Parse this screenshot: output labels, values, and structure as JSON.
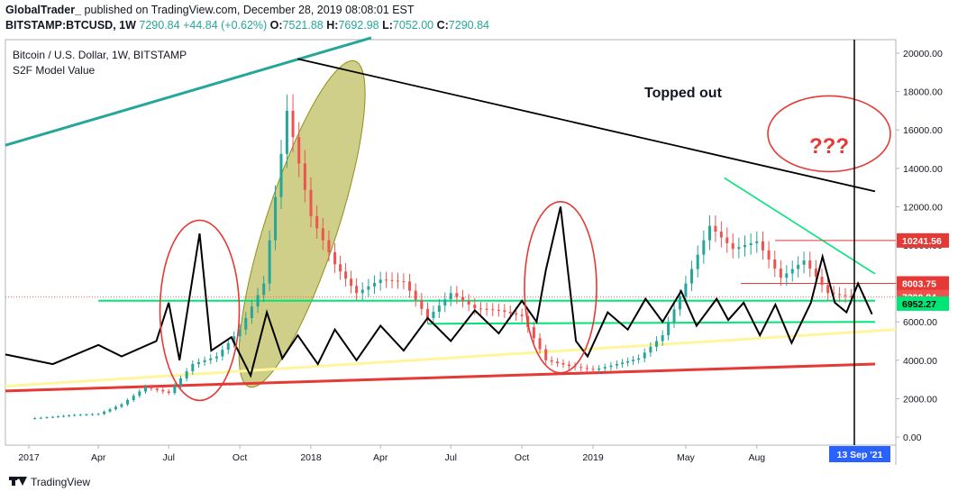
{
  "header": {
    "author": "GlobalTrader_",
    "published": "published on TradingView.com, December 28, 2019 08:08:01 EST",
    "symbol": "BITSTAMP:BTCUSD, 1W",
    "last": "7290.84",
    "change": "+44.84 (+0.62%)",
    "o_label": "O:",
    "o": "7521.88",
    "h_label": "H:",
    "h": "7692.98",
    "l_label": "L:",
    "l": "7052.00",
    "c_label": "C:",
    "c": "7290.84"
  },
  "legend": {
    "line1": "Bitcoin / U.S. Dollar, 1W, BITSTAMP",
    "line2": "S2F Model Value"
  },
  "annotations": {
    "topped_out": "Topped out",
    "question": "???"
  },
  "footer": {
    "brand": "TradingView"
  },
  "colors": {
    "up": "#26a69a",
    "down": "#ef5350",
    "s2f": "#000000",
    "upper_trend": "#26a69a",
    "lower_trend": "#e53935",
    "support": "#00e676",
    "accent": "#2962ff"
  },
  "chart_data": {
    "type": "candlestick",
    "title": "Bitcoin / U.S. Dollar, 1W, BITSTAMP",
    "y_axis": {
      "min": 0,
      "max": 21000,
      "ticks": [
        0,
        2000,
        4000,
        6000,
        8000,
        10000,
        12000,
        14000,
        16000,
        18000,
        20000
      ],
      "tick_labels": [
        "0.00",
        "2000.00",
        "4000.00",
        "6000.00",
        "8000.00",
        "10000.00",
        "12000.00",
        "14000.00",
        "16000.00",
        "18000.00",
        "20000.00"
      ]
    },
    "x_axis": {
      "start": "2016-12-01",
      "end": "2021-10-01",
      "ticks": [
        {
          "date": "2017-01-01",
          "label": "2017"
        },
        {
          "date": "2017-04-01",
          "label": "Apr"
        },
        {
          "date": "2017-07-01",
          "label": "Jul"
        },
        {
          "date": "2017-10-01",
          "label": "Oct"
        },
        {
          "date": "2018-01-01",
          "label": "2018"
        },
        {
          "date": "2018-04-01",
          "label": "Apr"
        },
        {
          "date": "2018-07-01",
          "label": "Jul"
        },
        {
          "date": "2018-10-01",
          "label": "Oct"
        },
        {
          "date": "2019-01-01",
          "label": "2019"
        },
        {
          "date": "2019-05-01",
          "label": "May"
        },
        {
          "date": "2019-08-01",
          "label": "Aug"
        }
      ],
      "cursor_label": "13 Sep '21"
    },
    "price_labels": [
      {
        "value": 10241.56,
        "label": "10241.56",
        "color": "#e53935"
      },
      {
        "value": 8003.75,
        "label": "8003.75",
        "color": "#e53935"
      },
      {
        "value": 7290.84,
        "label": "7290.84",
        "color": "#ef5350"
      },
      {
        "value": 6952.27,
        "label": "6952.27",
        "color": "#00e676"
      }
    ],
    "price_close_series": [
      {
        "d": "2017-01-01",
        "v": 960
      },
      {
        "d": "2017-02-01",
        "v": 1050
      },
      {
        "d": "2017-03-01",
        "v": 1150
      },
      {
        "d": "2017-04-01",
        "v": 1200
      },
      {
        "d": "2017-05-01",
        "v": 1700
      },
      {
        "d": "2017-06-01",
        "v": 2600
      },
      {
        "d": "2017-07-01",
        "v": 2300
      },
      {
        "d": "2017-08-01",
        "v": 3800
      },
      {
        "d": "2017-09-01",
        "v": 4200
      },
      {
        "d": "2017-10-01",
        "v": 5600
      },
      {
        "d": "2017-11-01",
        "v": 8000
      },
      {
        "d": "2017-12-01",
        "v": 17000
      },
      {
        "d": "2018-01-01",
        "v": 11500
      },
      {
        "d": "2018-02-01",
        "v": 9000
      },
      {
        "d": "2018-03-01",
        "v": 7500
      },
      {
        "d": "2018-04-01",
        "v": 8200
      },
      {
        "d": "2018-05-01",
        "v": 8100
      },
      {
        "d": "2018-06-01",
        "v": 6200
      },
      {
        "d": "2018-07-01",
        "v": 7500
      },
      {
        "d": "2018-08-01",
        "v": 6700
      },
      {
        "d": "2018-09-01",
        "v": 6600
      },
      {
        "d": "2018-10-01",
        "v": 6300
      },
      {
        "d": "2018-11-01",
        "v": 4000
      },
      {
        "d": "2018-12-01",
        "v": 3700
      },
      {
        "d": "2019-01-01",
        "v": 3500
      },
      {
        "d": "2019-02-01",
        "v": 3800
      },
      {
        "d": "2019-03-01",
        "v": 4100
      },
      {
        "d": "2019-04-01",
        "v": 5300
      },
      {
        "d": "2019-05-01",
        "v": 8000
      },
      {
        "d": "2019-06-01",
        "v": 11000
      },
      {
        "d": "2019-07-01",
        "v": 9800
      },
      {
        "d": "2019-08-01",
        "v": 10200
      },
      {
        "d": "2019-09-01",
        "v": 8300
      },
      {
        "d": "2019-10-01",
        "v": 9200
      },
      {
        "d": "2019-11-01",
        "v": 7500
      },
      {
        "d": "2019-12-01",
        "v": 7290
      }
    ],
    "s2f_series": [
      {
        "d": "2016-12-01",
        "v": 4300
      },
      {
        "d": "2017-02-01",
        "v": 3800
      },
      {
        "d": "2017-04-01",
        "v": 4800
      },
      {
        "d": "2017-05-01",
        "v": 4200
      },
      {
        "d": "2017-06-15",
        "v": 5000
      },
      {
        "d": "2017-07-01",
        "v": 7000
      },
      {
        "d": "2017-07-15",
        "v": 4000
      },
      {
        "d": "2017-08-10",
        "v": 10600
      },
      {
        "d": "2017-08-25",
        "v": 4500
      },
      {
        "d": "2017-09-20",
        "v": 5200
      },
      {
        "d": "2017-10-15",
        "v": 3200
      },
      {
        "d": "2017-11-05",
        "v": 6500
      },
      {
        "d": "2017-11-25",
        "v": 4100
      },
      {
        "d": "2017-12-15",
        "v": 5300
      },
      {
        "d": "2018-01-10",
        "v": 3800
      },
      {
        "d": "2018-02-01",
        "v": 5600
      },
      {
        "d": "2018-03-01",
        "v": 4000
      },
      {
        "d": "2018-04-01",
        "v": 5800
      },
      {
        "d": "2018-05-01",
        "v": 4500
      },
      {
        "d": "2018-06-01",
        "v": 6200
      },
      {
        "d": "2018-07-01",
        "v": 5000
      },
      {
        "d": "2018-08-01",
        "v": 6600
      },
      {
        "d": "2018-09-01",
        "v": 5400
      },
      {
        "d": "2018-10-01",
        "v": 7100
      },
      {
        "d": "2018-10-20",
        "v": 6000
      },
      {
        "d": "2018-11-01",
        "v": 8700
      },
      {
        "d": "2018-11-20",
        "v": 12000
      },
      {
        "d": "2018-12-10",
        "v": 5000
      },
      {
        "d": "2018-12-25",
        "v": 4200
      },
      {
        "d": "2019-01-20",
        "v": 6500
      },
      {
        "d": "2019-02-15",
        "v": 5600
      },
      {
        "d": "2019-03-10",
        "v": 7200
      },
      {
        "d": "2019-04-01",
        "v": 6000
      },
      {
        "d": "2019-04-25",
        "v": 7600
      },
      {
        "d": "2019-05-15",
        "v": 5800
      },
      {
        "d": "2019-06-10",
        "v": 7200
      },
      {
        "d": "2019-06-25",
        "v": 6100
      },
      {
        "d": "2019-07-15",
        "v": 7000
      },
      {
        "d": "2019-08-05",
        "v": 5300
      },
      {
        "d": "2019-08-25",
        "v": 6900
      },
      {
        "d": "2019-09-15",
        "v": 4900
      },
      {
        "d": "2019-10-10",
        "v": 7000
      },
      {
        "d": "2019-10-25",
        "v": 9400
      },
      {
        "d": "2019-11-10",
        "v": 7000
      },
      {
        "d": "2019-11-25",
        "v": 6500
      },
      {
        "d": "2019-12-10",
        "v": 8000
      },
      {
        "d": "2019-12-28",
        "v": 6400
      }
    ],
    "trendlines": [
      {
        "name": "upper",
        "from": {
          "d": "2016-12-01",
          "v": 15200
        },
        "to": {
          "d": "2018-03-20",
          "v": 20800
        }
      },
      {
        "name": "top",
        "from": {
          "d": "2017-12-15",
          "v": 19700
        },
        "to": {
          "d": "2020-01-01",
          "v": 12800
        }
      },
      {
        "name": "lower",
        "from": {
          "d": "2016-12-01",
          "v": 2400
        },
        "to": {
          "d": "2020-01-01",
          "v": 3800
        }
      },
      {
        "name": "support1",
        "from": {
          "d": "2017-04-01",
          "v": 7100
        },
        "to": {
          "d": "2020-01-01",
          "v": 7100
        }
      },
      {
        "name": "support2",
        "from": {
          "d": "2018-06-01",
          "v": 5900
        },
        "to": {
          "d": "2020-01-01",
          "v": 6000
        }
      },
      {
        "name": "descending",
        "from": {
          "d": "2019-06-20",
          "v": 13500
        },
        "to": {
          "d": "2020-01-01",
          "v": 8500
        }
      }
    ]
  }
}
